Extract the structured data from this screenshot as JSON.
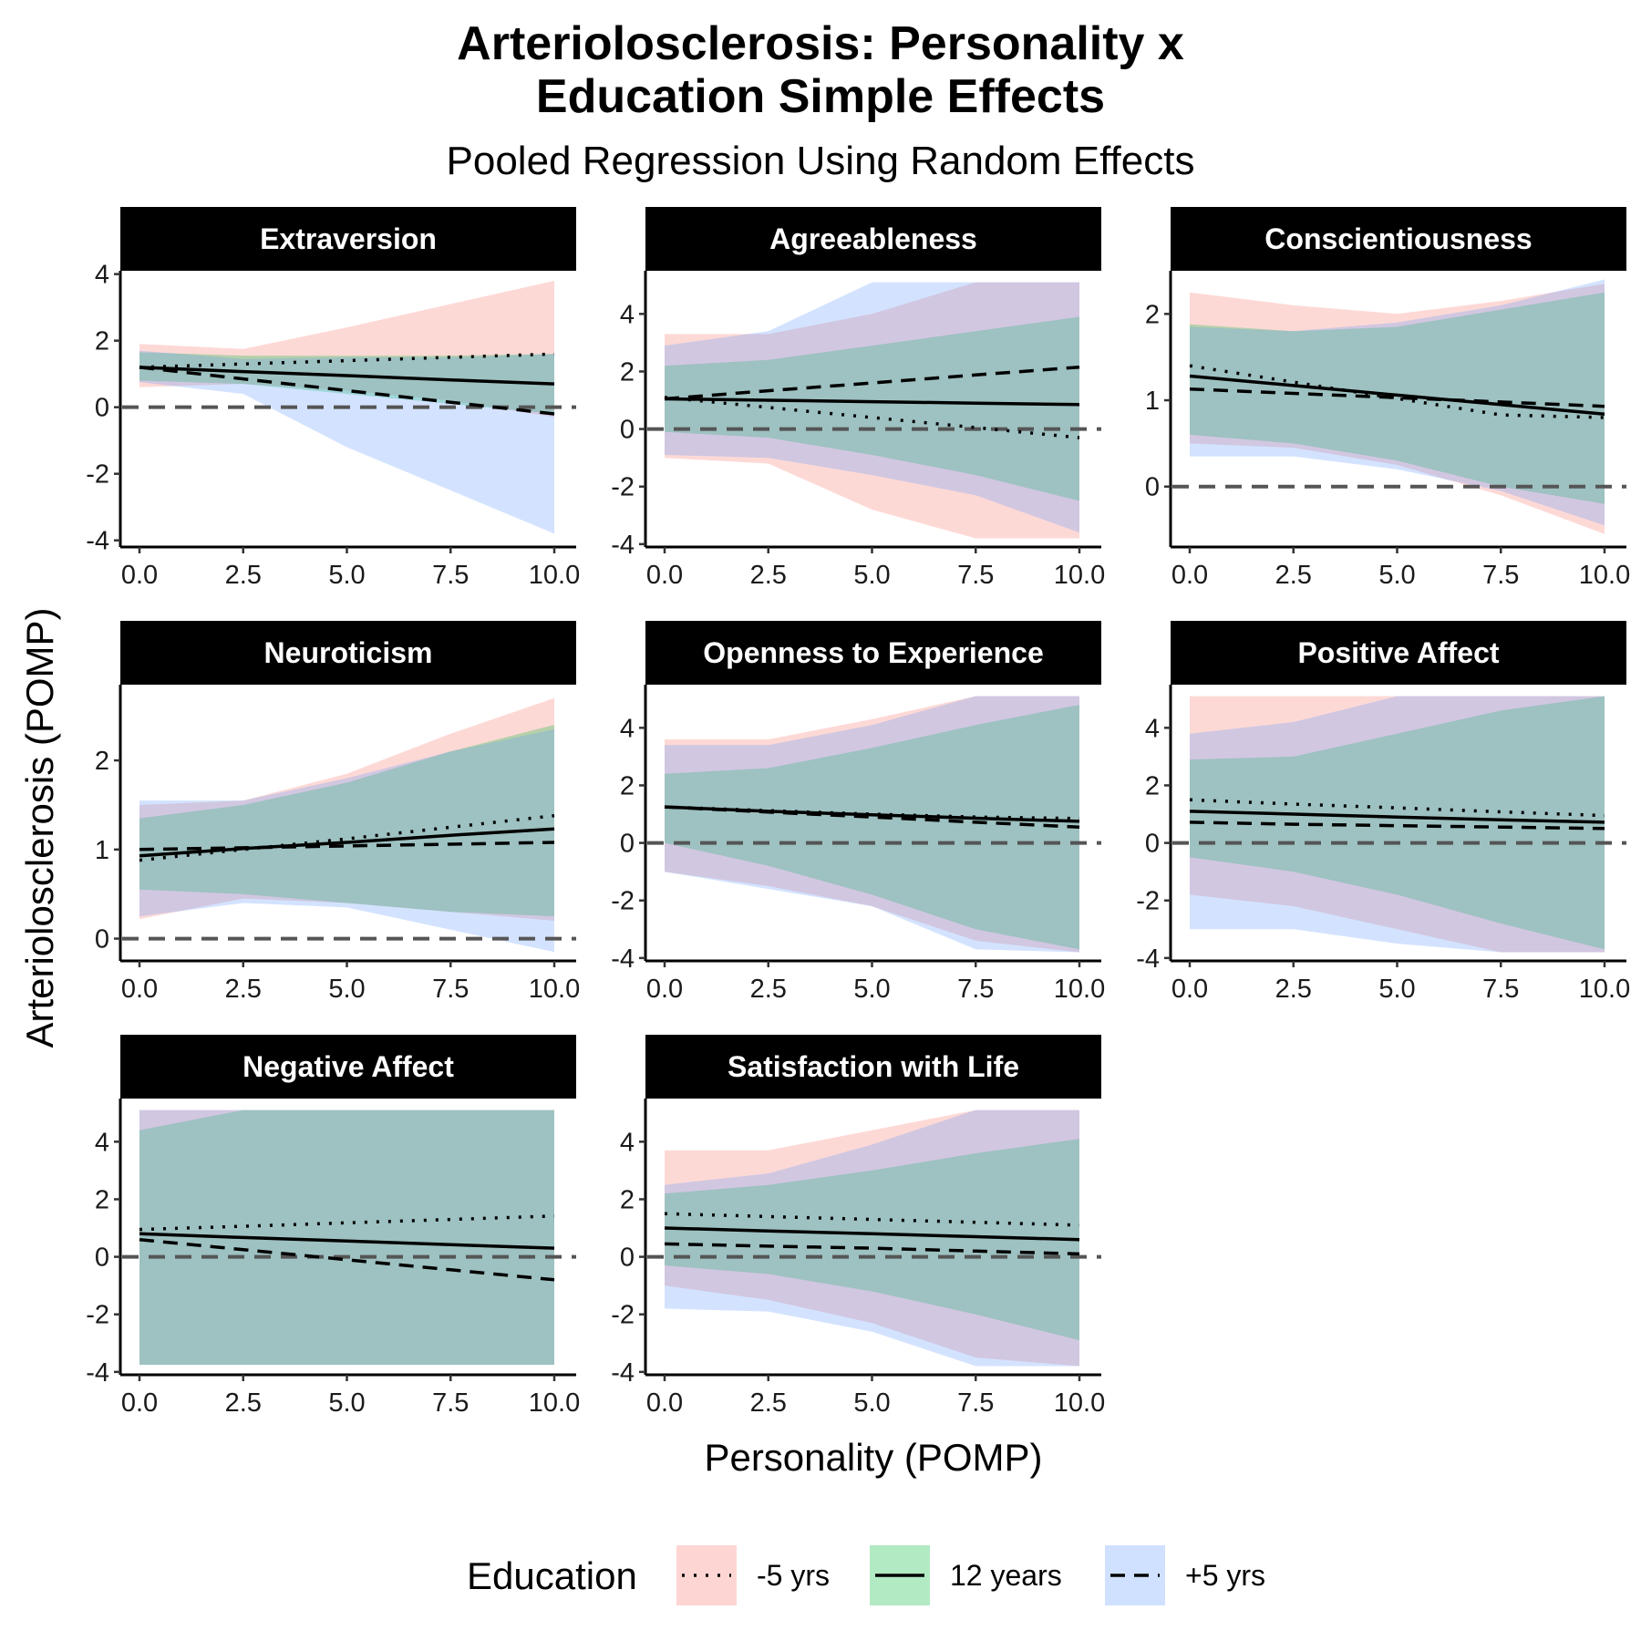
{
  "title_line1": "Arteriolosclerosis: Personality x",
  "title_line2": "Education Simple Effects",
  "subtitle": "Pooled Regression Using Random Effects",
  "colors": {
    "minus5": "#F8766D",
    "twelve": "#00BA38",
    "plus5": "#619CFF",
    "zero_line": "#555555",
    "strip_bg": "#000000"
  },
  "chart_data": {
    "type": "line",
    "xlabel": "Personality (POMP)",
    "ylabel": "Arteriolosclerosis (POMP)",
    "xlim": [
      0,
      10
    ],
    "x_ticks": [
      0,
      2.5,
      5,
      7.5,
      10
    ],
    "x_tick_labels": [
      "0.0",
      "2.5",
      "5.0",
      "7.5",
      "10.0"
    ],
    "legend": {
      "title": "Education",
      "position": "bottom",
      "entries": [
        {
          "key": "minus5",
          "label": "-5 yrs",
          "linetype": "dotted"
        },
        {
          "key": "twelve",
          "label": "12 years",
          "linetype": "solid"
        },
        {
          "key": "plus5",
          "label": "+5 yrs",
          "linetype": "dashed"
        }
      ]
    },
    "panels": [
      {
        "title": "Extraversion",
        "ylim": [
          -4.2,
          4.1
        ],
        "y_ticks": [
          -4,
          -2,
          0,
          2,
          4
        ],
        "series": [
          {
            "key": "minus5",
            "x": [
              0,
              2.5,
              5,
              7.5,
              10
            ],
            "y": [
              1.2,
              1.3,
              1.4,
              1.5,
              1.6
            ],
            "lower": [
              0.6,
              0.7,
              0.5,
              0.2,
              -0.3
            ],
            "upper": [
              1.9,
              1.75,
              2.4,
              3.1,
              3.8
            ]
          },
          {
            "key": "twelve",
            "x": [
              0,
              2.5,
              5,
              7.5,
              10
            ],
            "y": [
              1.2,
              1.07,
              0.95,
              0.82,
              0.7
            ],
            "lower": [
              0.8,
              0.7,
              0.4,
              0.1,
              -0.2
            ],
            "upper": [
              1.65,
              1.55,
              1.55,
              1.55,
              1.6
            ]
          },
          {
            "key": "plus5",
            "x": [
              0,
              2.5,
              5,
              7.5,
              10
            ],
            "y": [
              1.2,
              0.85,
              0.5,
              0.15,
              -0.2
            ],
            "lower": [
              0.75,
              0.4,
              -1.2,
              -2.5,
              -3.8
            ],
            "upper": [
              1.7,
              1.45,
              1.5,
              1.5,
              1.6
            ]
          }
        ]
      },
      {
        "title": "Agreeableness",
        "ylim": [
          -4.1,
          5.5
        ],
        "y_ticks": [
          -4,
          -2,
          0,
          2,
          4
        ],
        "series": [
          {
            "key": "minus5",
            "x": [
              0,
              2.5,
              5,
              7.5,
              10
            ],
            "y": [
              1.1,
              0.75,
              0.4,
              0.05,
              -0.3
            ],
            "lower": [
              -1.0,
              -1.2,
              -2.8,
              -3.8,
              -3.8
            ],
            "upper": [
              3.3,
              3.3,
              4.0,
              5.1,
              5.1
            ]
          },
          {
            "key": "twelve",
            "x": [
              0,
              2.5,
              5,
              7.5,
              10
            ],
            "y": [
              1.05,
              1.0,
              0.95,
              0.9,
              0.85
            ],
            "lower": [
              -0.1,
              -0.3,
              -0.9,
              -1.6,
              -2.5
            ],
            "upper": [
              2.2,
              2.4,
              2.9,
              3.4,
              3.9
            ]
          },
          {
            "key": "plus5",
            "x": [
              0,
              2.5,
              5,
              7.5,
              10
            ],
            "y": [
              1.05,
              1.33,
              1.6,
              1.88,
              2.15
            ],
            "lower": [
              -0.9,
              -1.0,
              -1.6,
              -2.3,
              -3.6
            ],
            "upper": [
              2.9,
              3.4,
              5.1,
              5.1,
              5.1
            ]
          }
        ]
      },
      {
        "title": "Conscientiousness",
        "ylim": [
          -0.7,
          2.5
        ],
        "y_ticks": [
          0,
          1,
          2
        ],
        "series": [
          {
            "key": "minus5",
            "x": [
              0,
              2.5,
              5,
              7.5,
              10
            ],
            "y": [
              1.4,
              1.21,
              1.02,
              0.83,
              0.8
            ],
            "lower": [
              0.5,
              0.45,
              0.25,
              -0.1,
              -0.55
            ],
            "upper": [
              2.25,
              2.1,
              2.0,
              2.15,
              2.35
            ]
          },
          {
            "key": "twelve",
            "x": [
              0,
              2.5,
              5,
              7.5,
              10
            ],
            "y": [
              1.28,
              1.17,
              1.06,
              0.95,
              0.84
            ],
            "lower": [
              0.6,
              0.5,
              0.3,
              0.0,
              -0.2
            ],
            "upper": [
              1.88,
              1.8,
              1.85,
              2.05,
              2.25
            ]
          },
          {
            "key": "plus5",
            "x": [
              0,
              2.5,
              5,
              7.5,
              10
            ],
            "y": [
              1.13,
              1.08,
              1.03,
              0.98,
              0.93
            ],
            "lower": [
              0.35,
              0.35,
              0.2,
              -0.05,
              -0.45
            ],
            "upper": [
              1.85,
              1.8,
              1.9,
              2.1,
              2.4
            ]
          }
        ]
      },
      {
        "title": "Neuroticism",
        "ylim": [
          -0.25,
          2.85
        ],
        "y_ticks": [
          0,
          1,
          2
        ],
        "series": [
          {
            "key": "minus5",
            "x": [
              0,
              2.5,
              5,
              7.5,
              10
            ],
            "y": [
              0.88,
              1.0,
              1.12,
              1.25,
              1.38
            ],
            "lower": [
              0.22,
              0.45,
              0.4,
              0.3,
              0.2
            ],
            "upper": [
              1.5,
              1.55,
              1.85,
              2.3,
              2.7
            ]
          },
          {
            "key": "twelve",
            "x": [
              0,
              2.5,
              5,
              7.5,
              10
            ],
            "y": [
              0.93,
              1.01,
              1.08,
              1.16,
              1.23
            ],
            "lower": [
              0.55,
              0.5,
              0.4,
              0.3,
              0.25
            ],
            "upper": [
              1.35,
              1.5,
              1.75,
              2.1,
              2.4
            ]
          },
          {
            "key": "plus5",
            "x": [
              0,
              2.5,
              5,
              7.5,
              10
            ],
            "y": [
              1.0,
              1.02,
              1.04,
              1.06,
              1.08
            ],
            "lower": [
              0.25,
              0.4,
              0.35,
              0.1,
              -0.15
            ],
            "upper": [
              1.55,
              1.55,
              1.8,
              2.1,
              2.35
            ]
          }
        ]
      },
      {
        "title": "Openness to Experience",
        "ylim": [
          -4.1,
          5.5
        ],
        "y_ticks": [
          -4,
          -2,
          0,
          2,
          4
        ],
        "series": [
          {
            "key": "minus5",
            "x": [
              0,
              2.5,
              5,
              7.5,
              10
            ],
            "y": [
              1.25,
              1.12,
              1.0,
              0.9,
              0.85
            ],
            "lower": [
              -1.0,
              -1.5,
              -2.2,
              -3.4,
              -3.8
            ],
            "upper": [
              3.6,
              3.6,
              4.3,
              5.1,
              5.1
            ]
          },
          {
            "key": "twelve",
            "x": [
              0,
              2.5,
              5,
              7.5,
              10
            ],
            "y": [
              1.25,
              1.1,
              0.98,
              0.86,
              0.75
            ],
            "lower": [
              0.0,
              -0.8,
              -1.8,
              -3.0,
              -3.7
            ],
            "upper": [
              2.4,
              2.6,
              3.3,
              4.1,
              4.8
            ]
          },
          {
            "key": "plus5",
            "x": [
              0,
              2.5,
              5,
              7.5,
              10
            ],
            "y": [
              1.25,
              1.07,
              0.9,
              0.72,
              0.55
            ],
            "lower": [
              -1.0,
              -1.6,
              -2.2,
              -3.7,
              -3.8
            ],
            "upper": [
              3.4,
              3.4,
              4.1,
              5.1,
              5.1
            ]
          }
        ]
      },
      {
        "title": "Positive Affect",
        "ylim": [
          -4.1,
          5.5
        ],
        "y_ticks": [
          -4,
          -2,
          0,
          2,
          4
        ],
        "series": [
          {
            "key": "minus5",
            "x": [
              0,
              2.5,
              5,
              7.5,
              10
            ],
            "y": [
              1.5,
              1.35,
              1.22,
              1.08,
              0.95
            ],
            "lower": [
              -1.8,
              -2.2,
              -3.0,
              -3.8,
              -3.8
            ],
            "upper": [
              5.1,
              5.1,
              5.1,
              5.1,
              5.1
            ]
          },
          {
            "key": "twelve",
            "x": [
              0,
              2.5,
              5,
              7.5,
              10
            ],
            "y": [
              1.1,
              1.0,
              0.9,
              0.8,
              0.72
            ],
            "lower": [
              -0.5,
              -1.0,
              -1.8,
              -2.8,
              -3.7
            ],
            "upper": [
              2.9,
              3.0,
              3.8,
              4.6,
              5.1
            ]
          },
          {
            "key": "plus5",
            "x": [
              0,
              2.5,
              5,
              7.5,
              10
            ],
            "y": [
              0.72,
              0.65,
              0.6,
              0.55,
              0.5
            ],
            "lower": [
              -3.0,
              -3.0,
              -3.5,
              -3.8,
              -3.8
            ],
            "upper": [
              3.8,
              4.2,
              5.1,
              5.1,
              5.1
            ]
          }
        ]
      },
      {
        "title": "Negative Affect",
        "ylim": [
          -4.1,
          5.5
        ],
        "y_ticks": [
          -4,
          -2,
          0,
          2,
          4
        ],
        "series": [
          {
            "key": "minus5",
            "x": [
              0,
              2.5,
              5,
              7.5,
              10
            ],
            "y": [
              0.95,
              1.06,
              1.18,
              1.3,
              1.42
            ],
            "lower": [
              -3.75,
              -3.75,
              -3.75,
              -3.75,
              -3.75
            ],
            "upper": [
              5.1,
              5.1,
              5.1,
              5.1,
              5.1
            ]
          },
          {
            "key": "twelve",
            "x": [
              0,
              2.5,
              5,
              7.5,
              10
            ],
            "y": [
              0.8,
              0.67,
              0.55,
              0.42,
              0.3
            ],
            "lower": [
              -3.75,
              -3.75,
              -3.75,
              -3.75,
              -3.75
            ],
            "upper": [
              4.4,
              5.1,
              5.1,
              5.1,
              5.1
            ]
          },
          {
            "key": "plus5",
            "x": [
              0,
              2.5,
              5,
              7.5,
              10
            ],
            "y": [
              0.6,
              0.25,
              -0.1,
              -0.45,
              -0.8
            ],
            "lower": [
              -3.75,
              -3.75,
              -3.75,
              -3.75,
              -3.75
            ],
            "upper": [
              5.1,
              5.1,
              5.1,
              5.1,
              5.1
            ]
          }
        ]
      },
      {
        "title": "Satisfaction with Life",
        "ylim": [
          -4.1,
          5.5
        ],
        "y_ticks": [
          -4,
          -2,
          0,
          2,
          4
        ],
        "series": [
          {
            "key": "minus5",
            "x": [
              0,
              2.5,
              5,
              7.5,
              10
            ],
            "y": [
              1.5,
              1.4,
              1.3,
              1.2,
              1.1
            ],
            "lower": [
              -1.0,
              -1.5,
              -2.3,
              -3.5,
              -3.8
            ],
            "upper": [
              3.7,
              3.7,
              4.4,
              5.1,
              5.1
            ]
          },
          {
            "key": "twelve",
            "x": [
              0,
              2.5,
              5,
              7.5,
              10
            ],
            "y": [
              1.0,
              0.9,
              0.8,
              0.7,
              0.6
            ],
            "lower": [
              -0.3,
              -0.6,
              -1.2,
              -2.0,
              -2.9
            ],
            "upper": [
              2.2,
              2.5,
              3.0,
              3.6,
              4.1
            ]
          },
          {
            "key": "plus5",
            "x": [
              0,
              2.5,
              5,
              7.5,
              10
            ],
            "y": [
              0.45,
              0.37,
              0.3,
              0.2,
              0.1
            ],
            "lower": [
              -1.8,
              -1.9,
              -2.6,
              -3.8,
              -3.8
            ],
            "upper": [
              2.5,
              2.9,
              3.9,
              5.1,
              5.1
            ]
          }
        ]
      }
    ]
  }
}
